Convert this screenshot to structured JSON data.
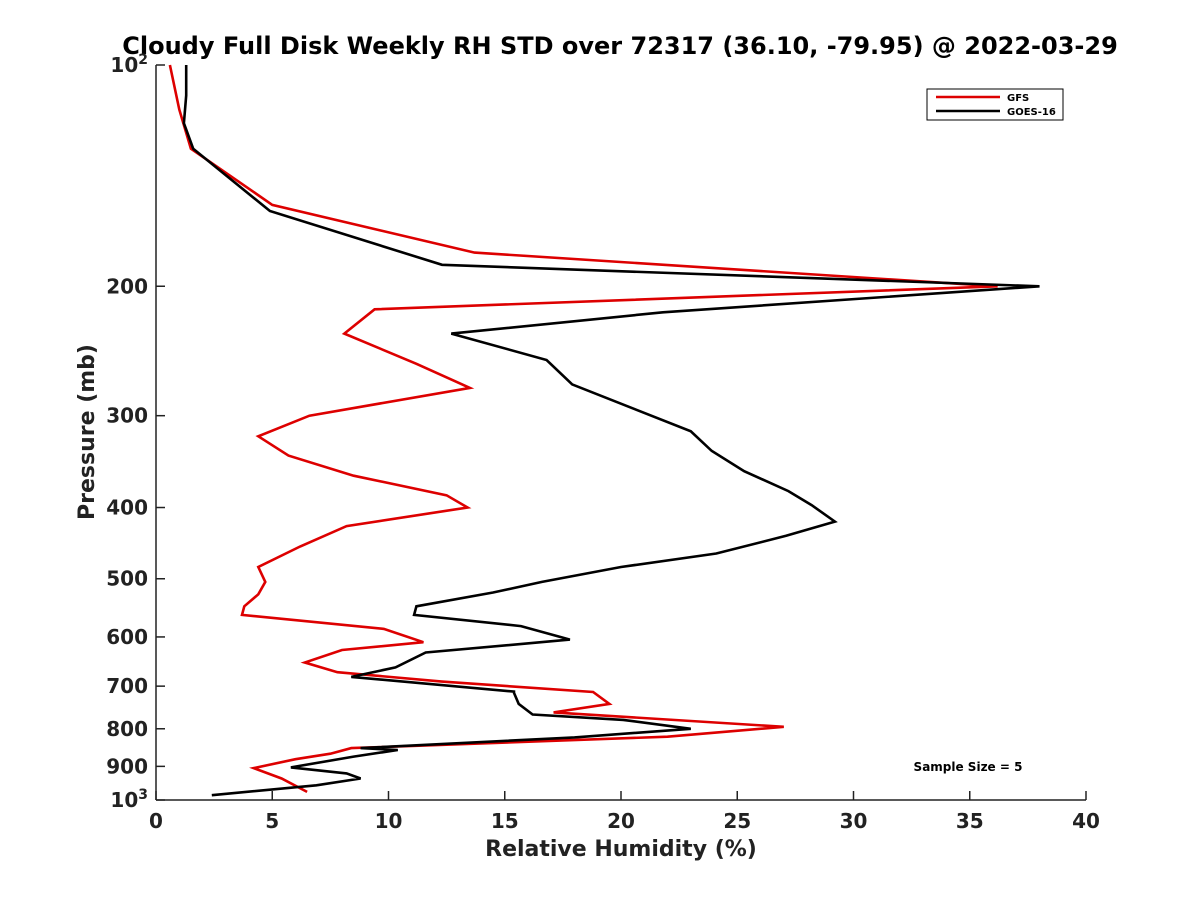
{
  "chart_data": {
    "type": "line",
    "title": "Cloudy Full Disk Weekly RH STD over 72317 (36.10, -79.95) @ 2022-03-29",
    "xlabel": "Relative Humidity (%)",
    "ylabel": "Pressure (mb)",
    "xlim": [
      0,
      40
    ],
    "ylim": [
      100,
      1000
    ],
    "yscale": "log",
    "y_reversed": true,
    "x_ticks": [
      0,
      5,
      10,
      15,
      20,
      25,
      30,
      35,
      40
    ],
    "x_tick_labels": [
      "0",
      "5",
      "10",
      "15",
      "20",
      "25",
      "30",
      "35",
      "40"
    ],
    "y_ticks": [
      100,
      200,
      300,
      400,
      500,
      600,
      700,
      800,
      900,
      1000
    ],
    "y_tick_labels": [
      "10^2",
      "200",
      "300",
      "400",
      "500",
      "600",
      "700",
      "800",
      "900",
      "10^3"
    ],
    "grid": false,
    "legend_position": "top-right",
    "annotation": "Sample Size = 5",
    "series": [
      {
        "name": "GFS",
        "color": "#dd0000",
        "x": [
          0.6,
          1.0,
          1.5,
          5.0,
          13.7,
          36.2,
          9.4,
          8.1,
          11.2,
          13.5,
          6.6,
          4.4,
          5.7,
          8.5,
          12.5,
          13.4,
          8.2,
          6.2,
          4.4,
          4.7,
          4.4,
          3.8,
          3.7,
          9.8,
          11.5,
          8.0,
          6.4,
          7.8,
          12.3,
          18.8,
          19.5,
          17.1,
          27.0,
          22.0,
          8.4,
          7.5,
          6.0,
          4.2,
          5.4,
          6.5
        ],
        "y": [
          100,
          115,
          130,
          155,
          180,
          200,
          215,
          232,
          255,
          275,
          300,
          320,
          340,
          362,
          385,
          400,
          424,
          452,
          482,
          505,
          525,
          545,
          560,
          585,
          610,
          625,
          650,
          670,
          690,
          713,
          740,
          760,
          795,
          820,
          850,
          865,
          880,
          905,
          935,
          975
        ]
      },
      {
        "name": "GOES-16",
        "color": "#000000",
        "x": [
          1.3,
          1.3,
          1.2,
          1.6,
          4.9,
          12.3,
          38.0,
          21.8,
          12.7,
          16.8,
          17.9,
          23.0,
          23.9,
          25.3,
          27.2,
          28.2,
          29.2,
          27.1,
          24.1,
          20.0,
          16.6,
          14.5,
          11.2,
          11.1,
          15.7,
          17.8,
          11.6,
          10.3,
          8.4,
          15.4,
          15.4,
          15.6,
          16.2,
          20.1,
          23.0,
          18.0,
          8.8,
          10.4,
          8.5,
          5.8,
          8.2,
          8.8,
          6.9,
          2.4
        ],
        "y": [
          100,
          110,
          120,
          130,
          158,
          187,
          200,
          217,
          232,
          252,
          272,
          315,
          335,
          357,
          380,
          397,
          418,
          437,
          462,
          482,
          505,
          522,
          545,
          560,
          580,
          605,
          630,
          660,
          680,
          712,
          715,
          740,
          765,
          778,
          800,
          822,
          850,
          855,
          873,
          903,
          920,
          935,
          955,
          985
        ]
      }
    ]
  }
}
